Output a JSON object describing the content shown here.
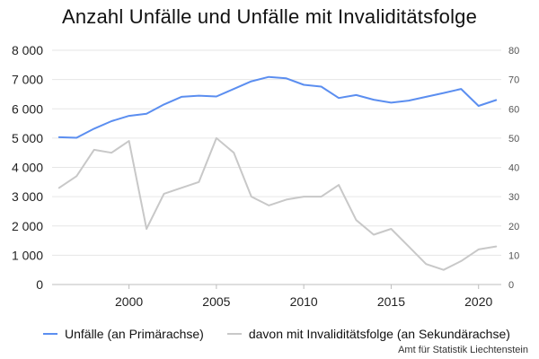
{
  "chart_data": {
    "type": "line",
    "title": "Anzahl Unfälle und Unfälle mit Invaliditätsfolge",
    "x": [
      1996,
      1997,
      1998,
      1999,
      2000,
      2001,
      2002,
      2003,
      2004,
      2005,
      2006,
      2007,
      2008,
      2009,
      2010,
      2011,
      2012,
      2013,
      2014,
      2015,
      2016,
      2017,
      2018,
      2019,
      2020,
      2021
    ],
    "x_ticks": [
      "2000",
      "2005",
      "2010",
      "2015",
      "2020"
    ],
    "xlim": [
      1995.6,
      2021.3
    ],
    "y_left": {
      "lim": [
        0,
        8000
      ],
      "ticks": [
        "0",
        "1 000",
        "2 000",
        "3 000",
        "4 000",
        "5 000",
        "6 000",
        "7 000",
        "8 000"
      ]
    },
    "y_right": {
      "lim": [
        0,
        80
      ],
      "ticks": [
        "0",
        "10",
        "20",
        "30",
        "40",
        "50",
        "60",
        "70",
        "80"
      ]
    },
    "grid": "horizontal",
    "legend_placement": "bottom",
    "series": [
      {
        "name": "Unfälle (an Primärachse)",
        "axis": "left",
        "color": "#5b8ef0",
        "values": [
          5030,
          5010,
          5320,
          5580,
          5760,
          5830,
          6150,
          6410,
          6450,
          6420,
          6680,
          6940,
          7090,
          7040,
          6820,
          6760,
          6370,
          6470,
          6310,
          6210,
          6280,
          6410,
          6540,
          6680,
          6100,
          6300
        ]
      },
      {
        "name": "davon mit Invaliditätsfolge (an Sekundärachse)",
        "axis": "right",
        "color": "#c8c8c8",
        "values": [
          33,
          37,
          46,
          45,
          49,
          19,
          31,
          33,
          35,
          50,
          45,
          30,
          27,
          29,
          30,
          30,
          34,
          22,
          17,
          19,
          13,
          7,
          5,
          8,
          12,
          13
        ]
      }
    ]
  },
  "source": "Amt für Statistik Liechtenstein"
}
